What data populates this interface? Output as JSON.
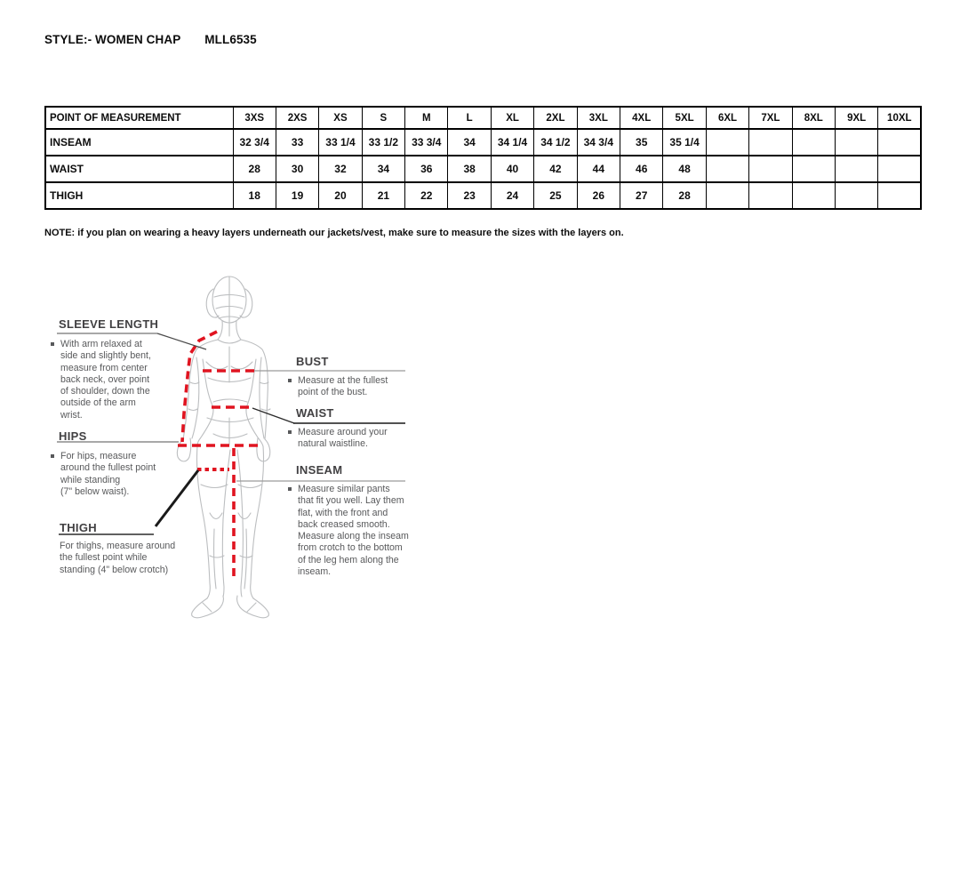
{
  "doc": {
    "title_label": "STYLE:- WOMEN CHAP",
    "style_code": "MLL6535",
    "note": "NOTE: if you plan on wearing a heavy layers underneath our jackets/vest, make sure to measure the sizes with the layers on."
  },
  "size_table": {
    "header": [
      "POINT OF MEASUREMENT",
      "3XS",
      "2XS",
      "XS",
      "S",
      "M",
      "L",
      "XL",
      "2XL",
      "3XL",
      "4XL",
      "5XL",
      "6XL",
      "7XL",
      "8XL",
      "9XL",
      "10XL"
    ],
    "rows": [
      {
        "label": "INSEAM",
        "values": [
          "32 3/4",
          "33",
          "33 1/4",
          "33 1/2",
          "33 3/4",
          "34",
          "34 1/4",
          "34 1/2",
          "34 3/4",
          "35",
          "35 1/4",
          "",
          "",
          "",
          "",
          ""
        ]
      },
      {
        "label": "WAIST",
        "values": [
          "28",
          "30",
          "32",
          "34",
          "36",
          "38",
          "40",
          "42",
          "44",
          "46",
          "48",
          "",
          "",
          "",
          "",
          ""
        ]
      },
      {
        "label": "THIGH",
        "values": [
          "18",
          "19",
          "20",
          "21",
          "22",
          "23",
          "24",
          "25",
          "26",
          "27",
          "28",
          "",
          "",
          "",
          "",
          ""
        ]
      }
    ]
  },
  "guide": {
    "sleeve_length": {
      "heading": "SLEEVE LENGTH",
      "text": "With arm relaxed at\nside and slightly bent,\nmeasure from center\nback neck, over point\nof shoulder, down the\noutside of the arm\nwrist."
    },
    "hips": {
      "heading": "HIPS",
      "text": "For hips, measure\naround the fullest point\nwhile standing\n(7\" below waist)."
    },
    "thigh": {
      "heading": "THIGH",
      "text": "For thighs, measure around\nthe fullest point while\nstanding (4\" below crotch)"
    },
    "bust": {
      "heading": "BUST",
      "text": "Measure at the fullest\npoint of the bust."
    },
    "waist": {
      "heading": "WAIST",
      "text": "Measure around your\nnatural waistline."
    },
    "inseam": {
      "heading": "INSEAM",
      "text": "Measure similar pants\nthat fit you well. Lay them\nflat, with the front and\nback creased smooth.\nMeasure along the inseam\nfrom crotch to the bottom\nof the leg hem along the\ninseam."
    }
  },
  "colors": {
    "accent_red": "#e01420",
    "figure_gray": "#bcbec0",
    "heading_gray": "#414042",
    "body_text_gray": "#58595b",
    "table_ink": "#0d0d0d"
  }
}
